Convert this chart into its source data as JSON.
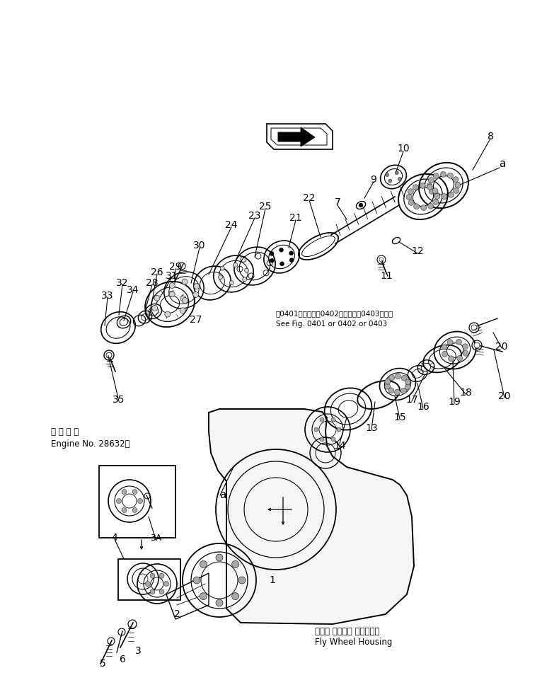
{
  "background_color": "#ffffff",
  "line_color": "#000000",
  "fig_width": 7.9,
  "fig_height": 9.61,
  "dpi": 100,
  "note_text1_jp": "第0401図または第0402図または第0403図参照",
  "note_text1_en": "See Fig. 0401 or 0402 or 0403",
  "note2_jp": "適 用 号 機",
  "note2_en": "Engine No. 28632～",
  "flywheel_jp": "フライ ホイール ハウジング",
  "flywheel_en": "Fly Wheel Housing"
}
